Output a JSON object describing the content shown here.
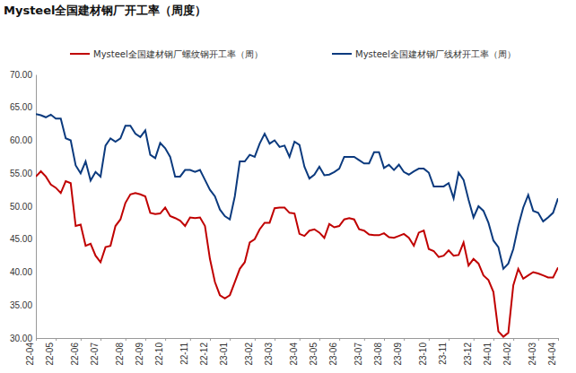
{
  "chart_data": {
    "type": "line",
    "title": "Mysteel全国建材钢厂开工率（周度）",
    "categories": [
      "22-04",
      null,
      null,
      null,
      "22-05",
      null,
      null,
      null,
      null,
      "22-06",
      null,
      null,
      null,
      "22-07",
      null,
      null,
      null,
      null,
      "22-08",
      null,
      null,
      null,
      "22-09",
      null,
      null,
      null,
      "22-10",
      null,
      null,
      null,
      null,
      "22-11",
      null,
      null,
      null,
      "22-12",
      null,
      null,
      null,
      "23-01",
      null,
      null,
      null,
      null,
      "23-02",
      null,
      null,
      null,
      "23-03",
      null,
      null,
      null,
      null,
      "23-04",
      null,
      null,
      null,
      "23-05",
      null,
      null,
      null,
      "23-06",
      null,
      null,
      null,
      null,
      "23-07",
      null,
      null,
      null,
      "23-08",
      null,
      null,
      null,
      "23-09",
      null,
      null,
      null,
      null,
      "23-10",
      null,
      null,
      null,
      "23-11",
      null,
      null,
      null,
      null,
      "23-12",
      null,
      null,
      null,
      "24-01",
      null,
      null,
      null,
      "24-02",
      null,
      null,
      null,
      null,
      "24-03",
      null,
      null,
      null,
      "24-04"
    ],
    "series": [
      {
        "name": "Mysteel全国建材钢厂螺纹钢开工率（周）",
        "color": "#c00000",
        "values": [
          54.5,
          55.3,
          54.5,
          53.3,
          52.8,
          52,
          53.8,
          53.5,
          47,
          47.2,
          44,
          44.3,
          42.5,
          41.5,
          43.8,
          44,
          47,
          48,
          50.5,
          51.8,
          52,
          51.8,
          51.5,
          49,
          48.8,
          48.9,
          49.8,
          48.5,
          48.2,
          47.8,
          47,
          48.3,
          48.2,
          48.3,
          47,
          42,
          38.5,
          36.5,
          36,
          36.5,
          38.5,
          40.5,
          41.5,
          44.5,
          45,
          46.5,
          47.5,
          47.5,
          49.7,
          49.8,
          49.8,
          49,
          48.9,
          45.8,
          45.5,
          46.3,
          46.5,
          46,
          45.2,
          47.3,
          46.8,
          47,
          48,
          48.2,
          48,
          46.5,
          46.3,
          45.7,
          45.6,
          45.6,
          45.9,
          45.3,
          45.2,
          45.5,
          45.8,
          45.2,
          44,
          46,
          46.3,
          43.5,
          43.2,
          42.3,
          42.5,
          43.3,
          42.5,
          42.6,
          44.5,
          41,
          42,
          41.3,
          39.5,
          38.8,
          37,
          31,
          30.2,
          30.8,
          38,
          40.5,
          39,
          39.5,
          40,
          39.8,
          39.5,
          39.2,
          39.2,
          40.7
        ]
      },
      {
        "name": "Mysteel全国建材钢厂线材开工率（周）",
        "color": "#0b3a7e",
        "values": [
          64,
          63.8,
          63.5,
          63.9,
          63.3,
          63.3,
          60.3,
          60,
          56.2,
          55,
          56.8,
          53.9,
          55.2,
          54.5,
          59.2,
          60.3,
          59.8,
          60.3,
          62.2,
          62.2,
          61,
          60.5,
          61.5,
          57.8,
          57.3,
          59.6,
          58.8,
          57.5,
          54.5,
          54.5,
          55.5,
          55.5,
          55.2,
          55.5,
          54,
          52.5,
          51.5,
          49.5,
          48.5,
          48,
          51.5,
          56.8,
          56.8,
          57.8,
          57.5,
          59.5,
          61,
          59.5,
          60,
          59,
          59.2,
          57.5,
          59.8,
          59.3,
          56,
          54.2,
          54.8,
          56,
          54.7,
          54.8,
          55.2,
          55.7,
          57.5,
          57.5,
          57.5,
          57,
          56.5,
          56.5,
          58.2,
          58.2,
          55.8,
          56.3,
          55.5,
          56.3,
          55.2,
          54.8,
          55.3,
          55.7,
          55.7,
          55.1,
          53,
          53,
          53,
          53.5,
          51.2,
          55.1,
          54,
          51,
          48.3,
          50,
          49.3,
          47.5,
          44.8,
          43.8,
          40.5,
          41.3,
          43.5,
          47,
          49.8,
          51.7,
          49.3,
          49,
          47.7,
          48.3,
          49,
          51.2
        ]
      }
    ],
    "ylim": [
      30,
      70
    ],
    "yticks": [
      {
        "value": 30,
        "label": "30.00"
      },
      {
        "value": 35,
        "label": "35.00"
      },
      {
        "value": 40,
        "label": "40.00"
      },
      {
        "value": 45,
        "label": "45.00"
      },
      {
        "value": 50,
        "label": "50.00"
      },
      {
        "value": 55,
        "label": "55.00"
      },
      {
        "value": 60,
        "label": "60.00"
      },
      {
        "value": 65,
        "label": "65.00"
      },
      {
        "value": 70,
        "label": "70.00"
      }
    ],
    "grid": false,
    "legend": "top"
  }
}
